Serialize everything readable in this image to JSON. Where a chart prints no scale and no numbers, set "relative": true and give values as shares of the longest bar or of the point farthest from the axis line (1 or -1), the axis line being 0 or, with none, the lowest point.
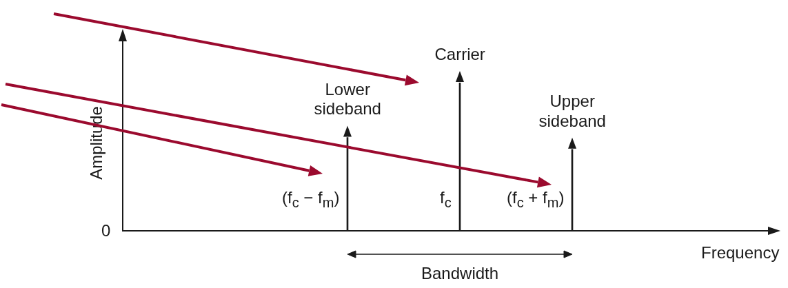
{
  "chart_data": {
    "type": "bar",
    "relative": true,
    "xlabel": "Frequency",
    "ylabel": "Amplitude",
    "categories": [
      null,
      null,
      "(f$_{c}$ − f$_{m}$)",
      "f$_{c}$",
      "(f$_{c}$ + f$_{m}$)",
      null
    ],
    "values": [
      null,
      null,
      0.63,
      1,
      0.55,
      null
    ],
    "color": "#1a1a1a",
    "annotations": [
      "0",
      "Bandwidth",
      "Lower\nsideband",
      "Carrier",
      "Upper\nsideband"
    ],
    "grid": false,
    "legend": false
  }
}
